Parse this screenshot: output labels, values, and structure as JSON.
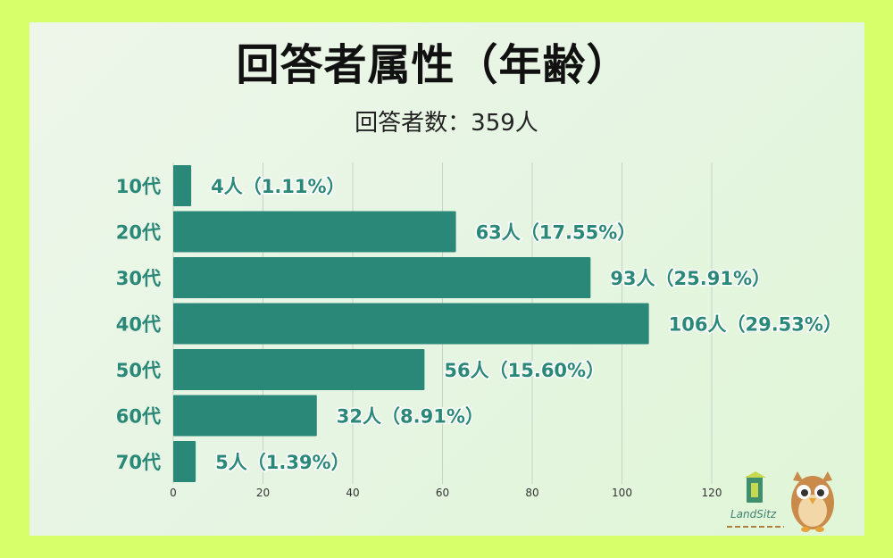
{
  "header": {
    "title": "回答者属性（年齢）",
    "subtitle": "回答者数：359人"
  },
  "chart_data": {
    "type": "bar",
    "orientation": "horizontal",
    "title": "回答者属性（年齢）",
    "subtitle": "回答者数：359人",
    "categories": [
      "10代",
      "20代",
      "30代",
      "40代",
      "50代",
      "60代",
      "70代"
    ],
    "values": [
      4,
      63,
      93,
      106,
      56,
      32,
      5
    ],
    "data_labels": [
      "4人（1.11%）",
      "63人（17.55%）",
      "93人（25.91%）",
      "106人（29.53%）",
      "56人（15.60%）",
      "32人（8.91%）",
      "5人（1.39%）"
    ],
    "xlim": [
      0,
      120
    ],
    "x_ticks": [
      0,
      20,
      40,
      60,
      80,
      100,
      120
    ],
    "grid": true,
    "colors": {
      "bar": "#2a8878",
      "label": "#2a8878",
      "grid": "#c8d2c8"
    }
  },
  "branding": {
    "logo_text": "LandSitz",
    "mascot": "owl-mascot"
  }
}
